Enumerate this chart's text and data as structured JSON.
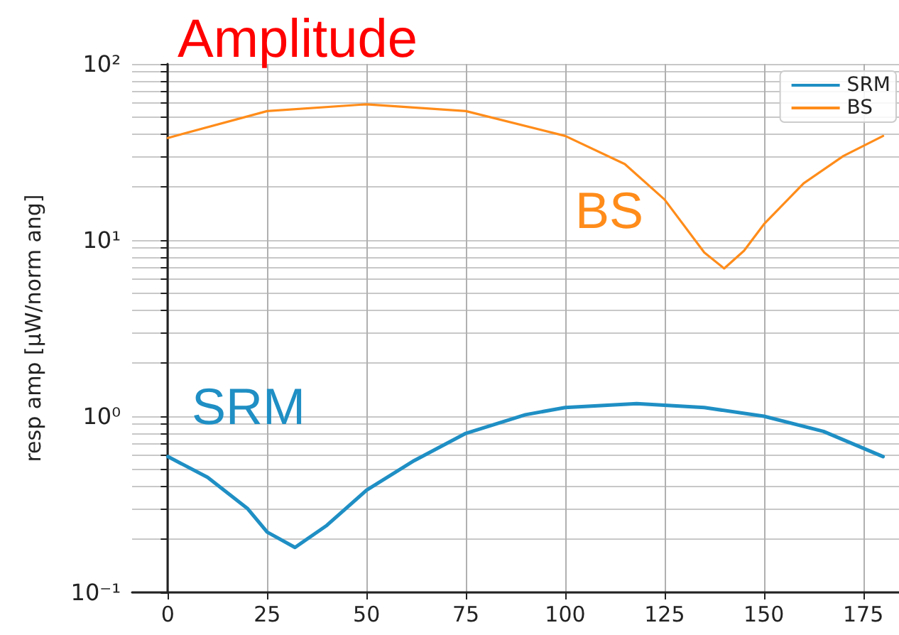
{
  "chart_data": {
    "type": "line",
    "title": "Amplitude",
    "ylabel": "resp amp [μW/norm ang]",
    "log": "y",
    "grid": true,
    "legend": "top right",
    "xlim": [
      -9,
      184
    ],
    "xticks": [
      0,
      25,
      50,
      75,
      100,
      125,
      150,
      175
    ],
    "ylim": [
      0.1,
      100
    ],
    "yticks": [
      {
        "value": 0.1,
        "label": "10⁻¹"
      },
      {
        "value": 0.2,
        "label": null
      },
      {
        "value": 0.3,
        "label": null
      },
      {
        "value": 0.4,
        "label": null
      },
      {
        "value": 0.5,
        "label": null
      },
      {
        "value": 0.6,
        "label": null
      },
      {
        "value": 0.7,
        "label": null
      },
      {
        "value": 0.8,
        "label": null
      },
      {
        "value": 0.9,
        "label": null
      },
      {
        "value": 1,
        "label": "10⁰"
      },
      {
        "value": 2,
        "label": null
      },
      {
        "value": 3,
        "label": null
      },
      {
        "value": 4,
        "label": null
      },
      {
        "value": 5,
        "label": null
      },
      {
        "value": 6,
        "label": null
      },
      {
        "value": 7,
        "label": null
      },
      {
        "value": 8,
        "label": null
      },
      {
        "value": 9,
        "label": null
      },
      {
        "value": 10,
        "label": "10¹"
      },
      {
        "value": 20,
        "label": null
      },
      {
        "value": 30,
        "label": null
      },
      {
        "value": 40,
        "label": null
      },
      {
        "value": 50,
        "label": null
      },
      {
        "value": 60,
        "label": null
      },
      {
        "value": 70,
        "label": null
      },
      {
        "value": 80,
        "label": null
      },
      {
        "value": 90,
        "label": null
      },
      {
        "value": 100,
        "label": "10²"
      }
    ],
    "series": [
      {
        "name": "SRM",
        "color": "#1f8fc4",
        "x": [
          0,
          10,
          20,
          25,
          32,
          40,
          50,
          62,
          75,
          90,
          100,
          118,
          135,
          150,
          165,
          180
        ],
        "values": [
          0.59,
          0.45,
          0.3,
          0.22,
          0.18,
          0.24,
          0.38,
          0.56,
          0.8,
          1.02,
          1.12,
          1.18,
          1.12,
          1.0,
          0.82,
          0.59
        ]
      },
      {
        "name": "BS",
        "color": "#ff8c1a",
        "x": [
          0,
          25,
          50,
          75,
          100,
          115,
          125,
          135,
          140,
          145,
          150,
          160,
          170,
          180
        ],
        "values": [
          38,
          54,
          59,
          54,
          39,
          27,
          17,
          8.5,
          6.9,
          8.7,
          12.3,
          21,
          30,
          39
        ]
      }
    ],
    "annotations": [
      "SRM",
      "BS"
    ]
  }
}
